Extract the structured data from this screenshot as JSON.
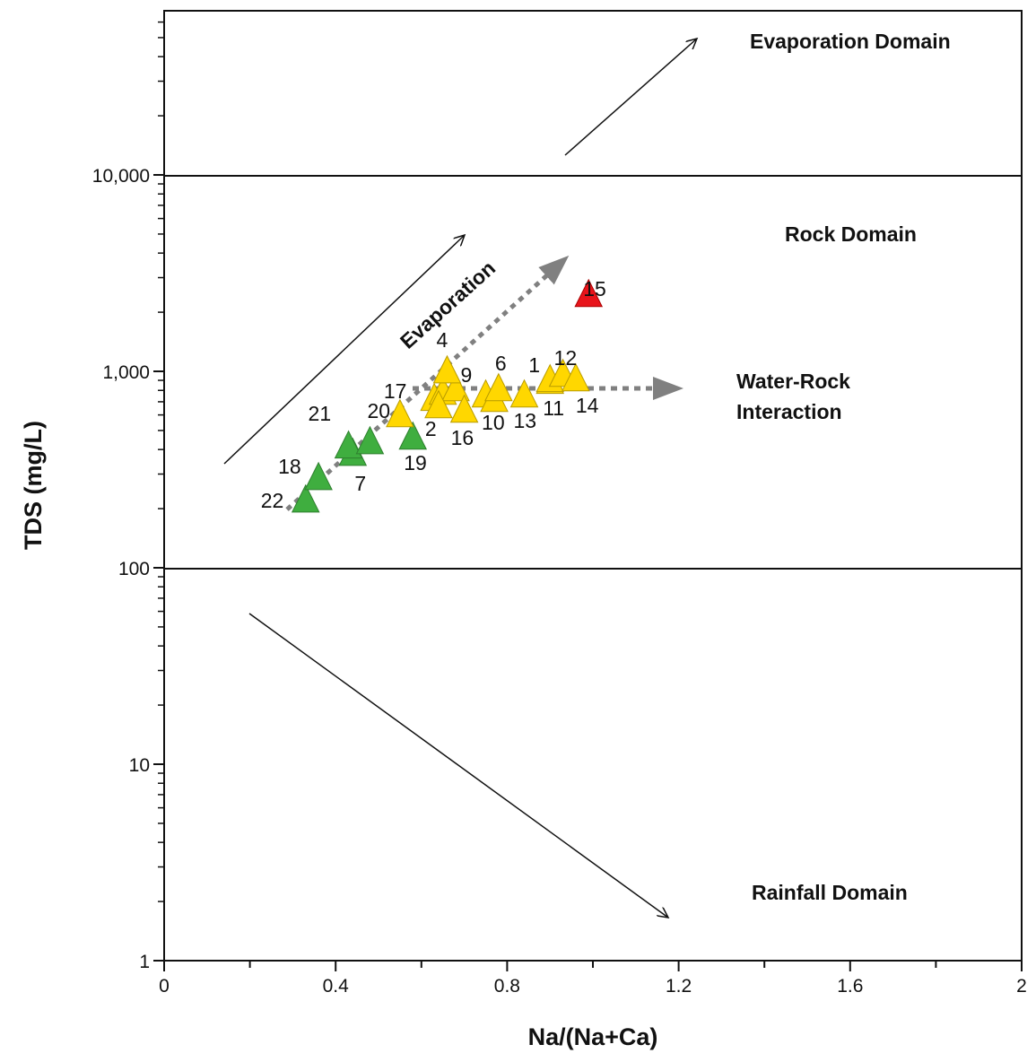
{
  "chart_data": {
    "type": "scatter",
    "xlabel": "Na/(Na+Ca)",
    "ylabel": "TDS (mg/L)",
    "xlim": [
      0,
      2
    ],
    "ylim": [
      1,
      68500
    ],
    "yscale": "log",
    "xticks": [
      0,
      0.4,
      0.8,
      1.2,
      1.6,
      2
    ],
    "xtick_labels": [
      "0",
      "0.4",
      "0.8",
      "1.2",
      "1.6",
      "2"
    ],
    "yticks": [
      1,
      10,
      100,
      1000,
      10000
    ],
    "ytick_labels": [
      "1",
      "10",
      "100",
      "1,000",
      "10,000"
    ],
    "grid": false,
    "boundaries": [
      100,
      10000
    ],
    "domain_labels": {
      "evaporation": "Evaporation Domain",
      "rock": "Rock Domain",
      "rainfall": "Rainfall Domain",
      "water_rock_1": "Water-Rock",
      "water_rock_2": "Interaction",
      "evaporation_trend": "Evaporation"
    },
    "colors": {
      "green": "#3fae3f",
      "yellow": "#ffd700",
      "red": "#e8141b",
      "dotted": "#808080"
    },
    "points": [
      {
        "label": "22",
        "x": 0.33,
        "y": 213,
        "group": "green"
      },
      {
        "label": "18",
        "x": 0.36,
        "y": 277,
        "group": "green"
      },
      {
        "label": "7",
        "x": 0.44,
        "y": 368,
        "group": "green"
      },
      {
        "label": "21",
        "x": 0.43,
        "y": 401,
        "group": "green"
      },
      {
        "label": "20",
        "x": 0.48,
        "y": 422,
        "group": "green"
      },
      {
        "label": "19",
        "x": 0.58,
        "y": 445,
        "group": "green"
      },
      {
        "label": "17",
        "x": 0.55,
        "y": 579,
        "group": "yellow"
      },
      {
        "label": "",
        "x": 0.63,
        "y": 700,
        "group": "yellow"
      },
      {
        "label": "",
        "x": 0.65,
        "y": 753,
        "group": "yellow"
      },
      {
        "label": "",
        "x": 0.68,
        "y": 785,
        "group": "yellow"
      },
      {
        "label": "4",
        "x": 0.66,
        "y": 968,
        "group": "yellow"
      },
      {
        "label": "2",
        "x": 0.64,
        "y": 643,
        "group": "yellow"
      },
      {
        "label": "16",
        "x": 0.7,
        "y": 610,
        "group": "yellow"
      },
      {
        "label": "9",
        "x": 0.75,
        "y": 730,
        "group": "yellow"
      },
      {
        "label": "10",
        "x": 0.77,
        "y": 692,
        "group": "yellow"
      },
      {
        "label": "6",
        "x": 0.78,
        "y": 785,
        "group": "yellow"
      },
      {
        "label": "13",
        "x": 0.84,
        "y": 730,
        "group": "yellow"
      },
      {
        "label": "11",
        "x": 0.9,
        "y": 855,
        "group": "yellow"
      },
      {
        "label": "1",
        "x": 0.9,
        "y": 873,
        "group": "yellow"
      },
      {
        "label": "12",
        "x": 0.93,
        "y": 929,
        "group": "yellow"
      },
      {
        "label": "14",
        "x": 0.96,
        "y": 882,
        "group": "yellow"
      },
      {
        "label": "15",
        "x": 0.99,
        "y": 2367,
        "group": "red"
      }
    ]
  }
}
